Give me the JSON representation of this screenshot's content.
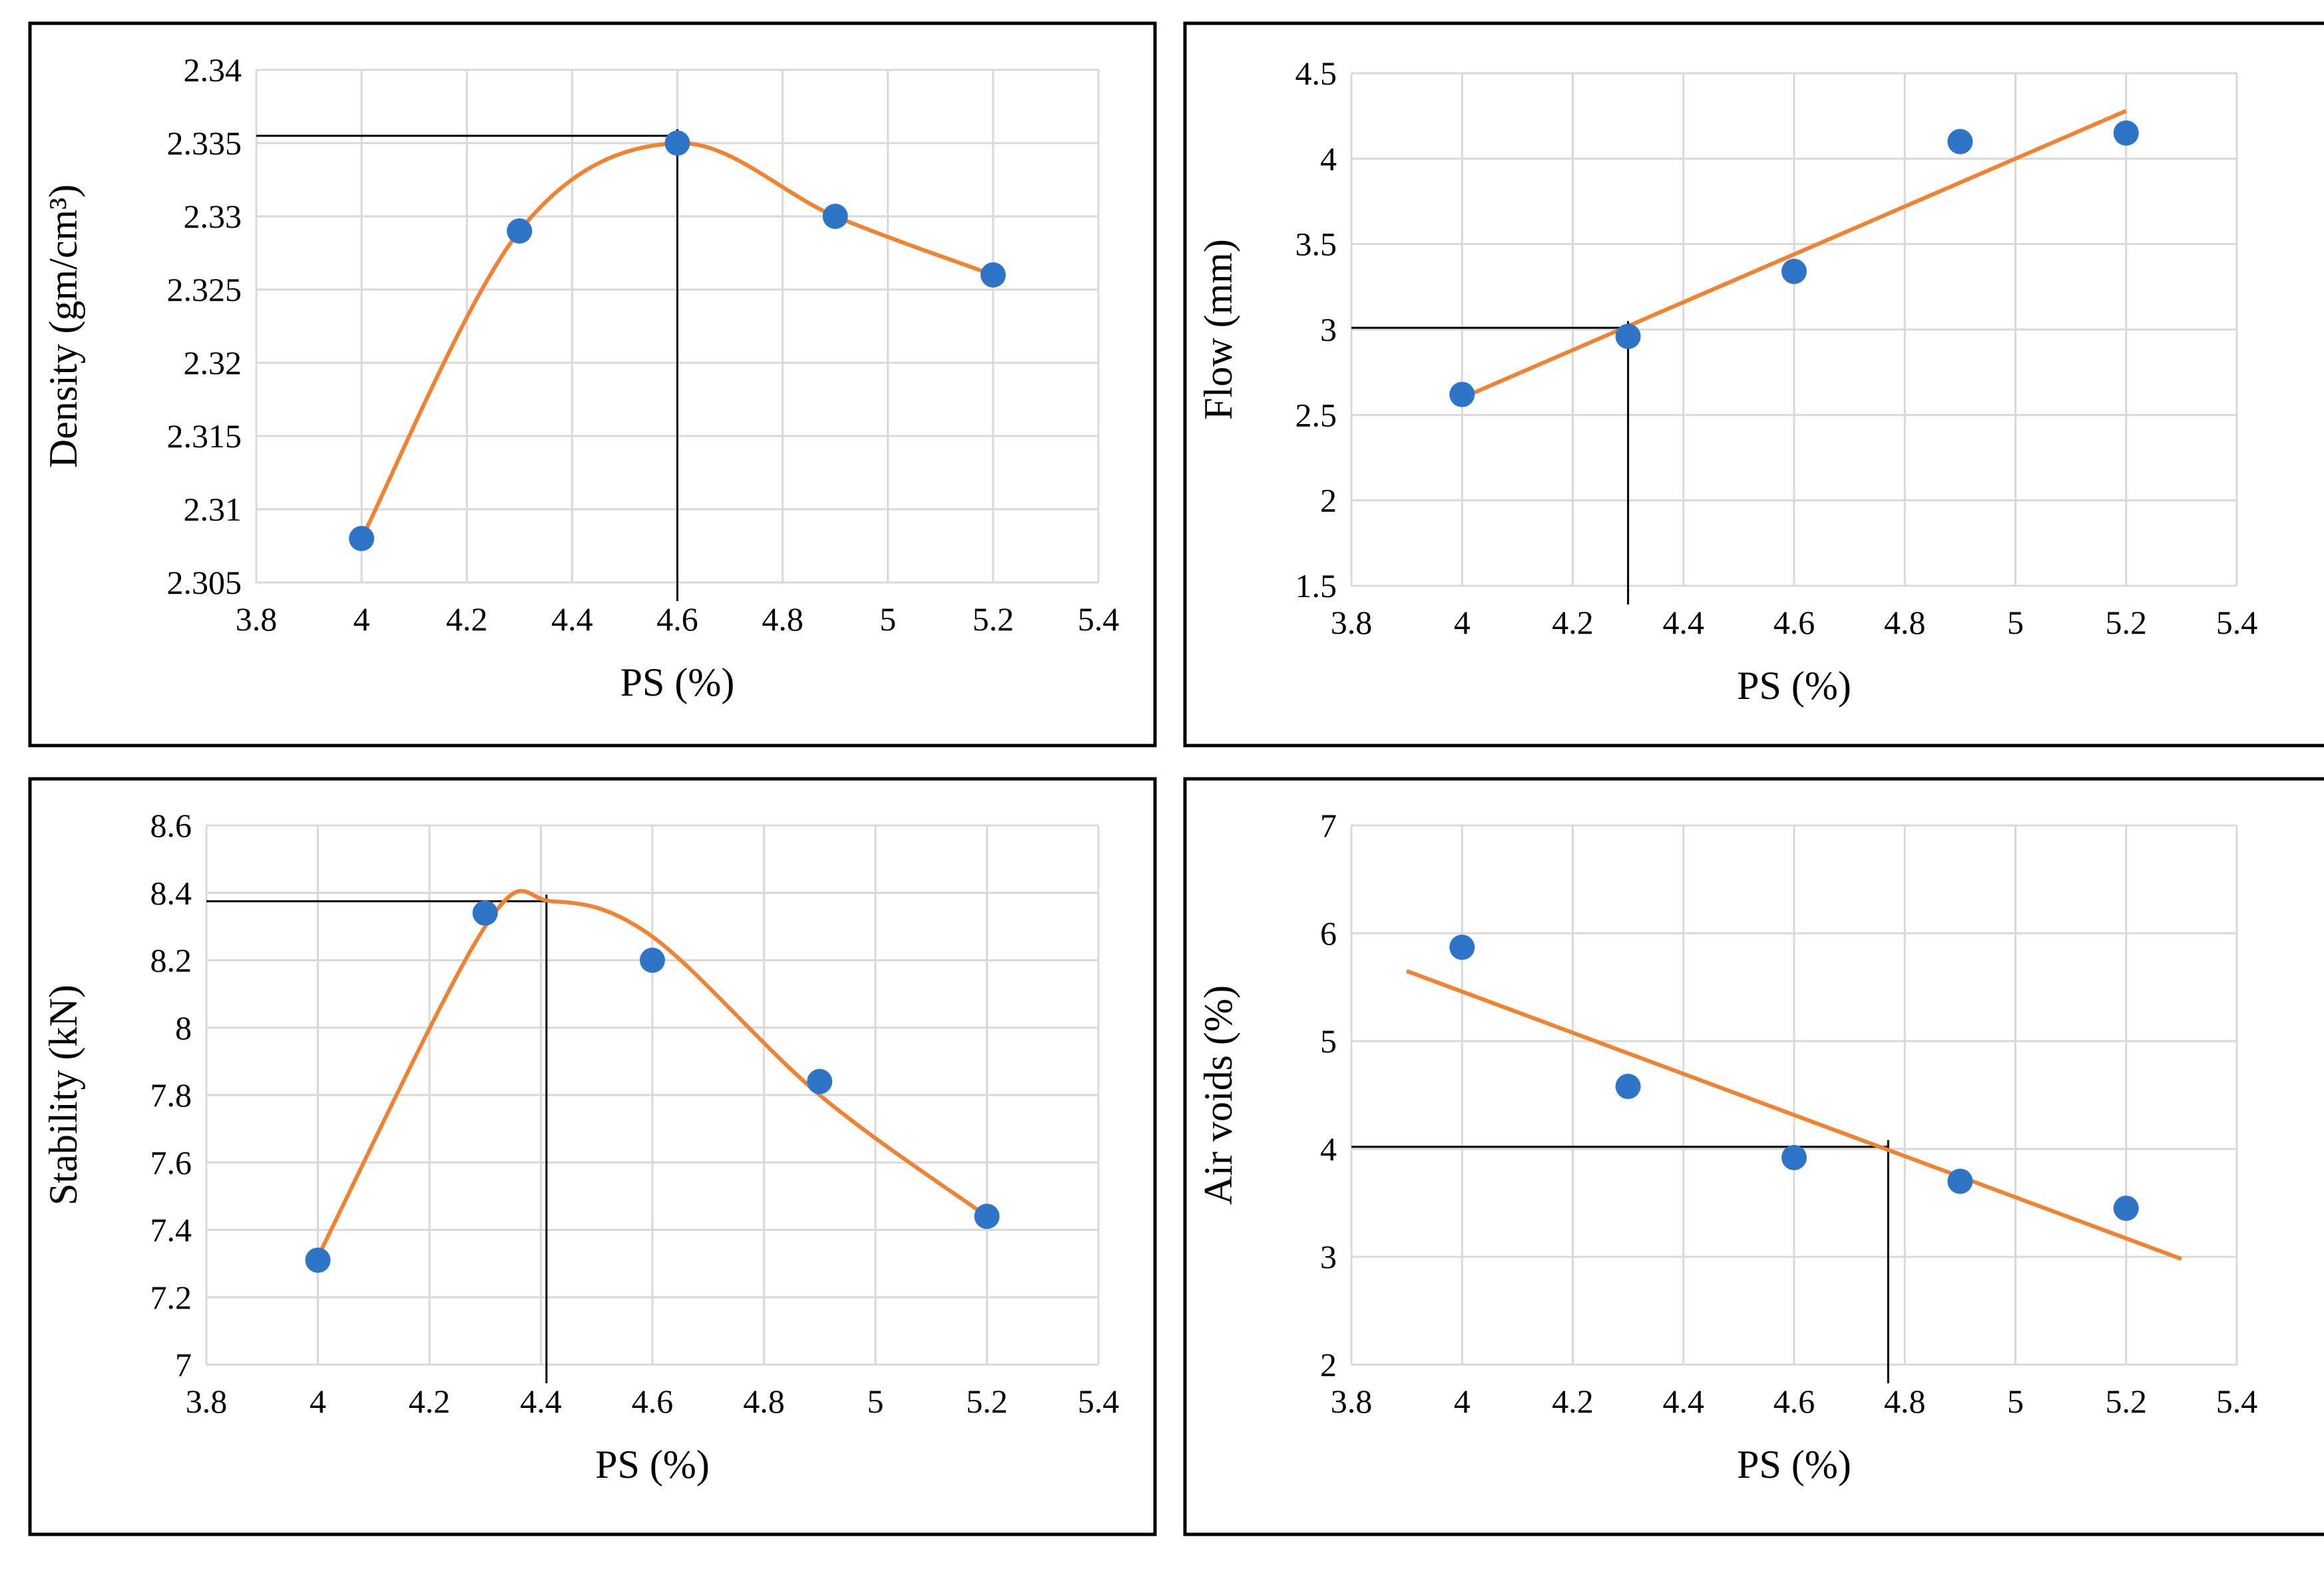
{
  "colors": {
    "marker": "#2E75C8",
    "fit": "#F08232",
    "grid": "#D9D9D9",
    "frame": "#000000",
    "guide": "#000000"
  },
  "chart_data": [
    {
      "type": "scatter",
      "title": "",
      "xlabel": "PS (%)",
      "ylabel": "Density (gm/cm³)",
      "xlim": [
        3.8,
        5.4
      ],
      "ylim": [
        2.305,
        2.34
      ],
      "xticks": [
        3.8,
        4,
        4.2,
        4.4,
        4.6,
        4.8,
        5,
        5.2,
        5.4
      ],
      "xtick_labels": [
        "3.8",
        "4",
        "4.2",
        "4.4",
        "4.6",
        "4.8",
        "5",
        "5.2",
        "5.4"
      ],
      "yticks": [
        2.305,
        2.31,
        2.315,
        2.32,
        2.325,
        2.33,
        2.335,
        2.34
      ],
      "ytick_labels": [
        "2.305",
        "2.31",
        "2.315",
        "2.32",
        "2.325",
        "2.33",
        "2.335",
        "2.34"
      ],
      "grid": true,
      "series": [
        {
          "name": "Density",
          "x": [
            4.0,
            4.3,
            4.6,
            4.9,
            5.2
          ],
          "y": [
            2.308,
            2.329,
            2.335,
            2.33,
            2.326
          ]
        }
      ],
      "fit": {
        "kind": "smooth",
        "x": [
          4.0,
          4.3,
          4.6,
          4.9,
          5.2
        ],
        "y": [
          2.308,
          2.329,
          2.335,
          2.33,
          2.326
        ]
      },
      "guide": {
        "x": 4.6,
        "y": 2.3355
      }
    },
    {
      "type": "scatter",
      "title": "",
      "xlabel": "PS (%)",
      "ylabel": "Flow (mm)",
      "xlim": [
        3.8,
        5.4
      ],
      "ylim": [
        1.5,
        4.5
      ],
      "xticks": [
        3.8,
        4,
        4.2,
        4.4,
        4.6,
        4.8,
        5,
        5.2,
        5.4
      ],
      "xtick_labels": [
        "3.8",
        "4",
        "4.2",
        "4.4",
        "4.6",
        "4.8",
        "5",
        "5.2",
        "5.4"
      ],
      "yticks": [
        1.5,
        2,
        2.5,
        3,
        3.5,
        4,
        4.5
      ],
      "ytick_labels": [
        "1.5",
        "2",
        "2.5",
        "3",
        "3.5",
        "4",
        "4.5"
      ],
      "grid": true,
      "series": [
        {
          "name": "Flow",
          "x": [
            4.0,
            4.3,
            4.6,
            4.9,
            5.2
          ],
          "y": [
            2.62,
            2.96,
            3.34,
            4.1,
            4.15
          ]
        }
      ],
      "fit": {
        "kind": "linear",
        "x": [
          4.0,
          5.2
        ],
        "y": [
          2.6,
          4.28
        ]
      },
      "guide": {
        "x": 4.3,
        "y": 3.01
      }
    },
    {
      "type": "scatter",
      "title": "",
      "xlabel": "PS (%)",
      "ylabel": "Stability (kN)",
      "xlim": [
        3.8,
        5.4
      ],
      "ylim": [
        7.0,
        8.6
      ],
      "xticks": [
        3.8,
        4,
        4.2,
        4.4,
        4.6,
        4.8,
        5,
        5.2,
        5.4
      ],
      "xtick_labels": [
        "3.8",
        "4",
        "4.2",
        "4.4",
        "4.6",
        "4.8",
        "5",
        "5.2",
        "5.4"
      ],
      "yticks": [
        7,
        7.2,
        7.4,
        7.6,
        7.8,
        8,
        8.2,
        8.4,
        8.6
      ],
      "ytick_labels": [
        "7",
        "7.2",
        "7.4",
        "7.6",
        "7.8",
        "8",
        "8.2",
        "8.4",
        "8.6"
      ],
      "grid": true,
      "series": [
        {
          "name": "Stability",
          "x": [
            4.0,
            4.3,
            4.6,
            4.9,
            5.2
          ],
          "y": [
            7.31,
            8.34,
            8.2,
            7.84,
            7.44
          ]
        }
      ],
      "fit": {
        "kind": "smooth",
        "x": [
          4.0,
          4.3,
          4.42,
          4.6,
          4.9,
          5.2
        ],
        "y": [
          7.32,
          8.3,
          8.375,
          8.27,
          7.8,
          7.44
        ]
      },
      "guide": {
        "x": 4.41,
        "y": 8.375
      }
    },
    {
      "type": "scatter",
      "title": "",
      "xlabel": "PS (%)",
      "ylabel": "Air voids (%)",
      "xlim": [
        3.8,
        5.4
      ],
      "ylim": [
        2,
        7
      ],
      "xticks": [
        3.8,
        4,
        4.2,
        4.4,
        4.6,
        4.8,
        5,
        5.2,
        5.4
      ],
      "xtick_labels": [
        "3.8",
        "4",
        "4.2",
        "4.4",
        "4.6",
        "4.8",
        "5",
        "5.2",
        "5.4"
      ],
      "yticks": [
        2,
        3,
        4,
        5,
        6,
        7
      ],
      "ytick_labels": [
        "2",
        "3",
        "4",
        "5",
        "6",
        "7"
      ],
      "grid": true,
      "series": [
        {
          "name": "Air voids",
          "x": [
            4.0,
            4.3,
            4.6,
            4.9,
            5.2
          ],
          "y": [
            5.87,
            4.58,
            3.92,
            3.7,
            3.45
          ]
        }
      ],
      "fit": {
        "kind": "linear",
        "x": [
          3.9,
          5.3
        ],
        "y": [
          5.65,
          2.98
        ]
      },
      "guide": {
        "x": 4.77,
        "y": 4.02
      }
    }
  ]
}
